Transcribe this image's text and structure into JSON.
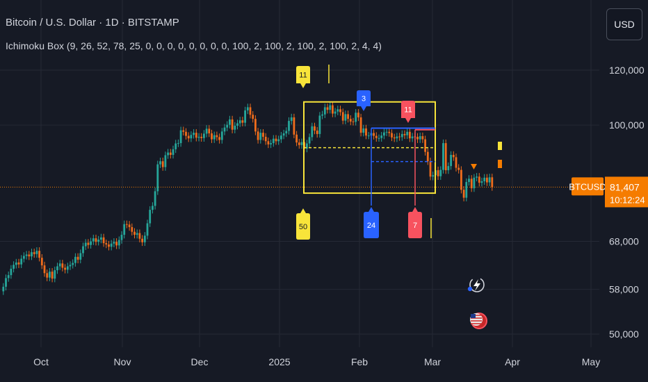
{
  "header": {
    "title": "Bitcoin / U.S. Dollar · 1D · BITSTAMP",
    "indicator": "Ichimoku Box (9, 26, 52, 78, 25, 0, 0, 0, 0, 0, 0, 0, 0, 100, 2, 100, 2, 100, 2, 100, 2, 4, 4)"
  },
  "currency_button": "USD",
  "chart_data": {
    "type": "candlestick",
    "title": "Bitcoin / U.S. Dollar · 1D · BITSTAMP",
    "y_ticks": [
      "120,000",
      "100,000",
      "68,000",
      "58,000",
      "50,000"
    ],
    "x_ticks": [
      "Oct",
      "Nov",
      "Dec",
      "2025",
      "Feb",
      "Mar",
      "Apr",
      "May"
    ],
    "grid": true,
    "last_price": {
      "symbol": "BTCUSD",
      "value": "81,407",
      "countdown": "10:12:24"
    },
    "closes": [
      58500,
      60200,
      60800,
      62100,
      62900,
      63400,
      63000,
      64200,
      64800,
      65100,
      64700,
      65600,
      65200,
      65900,
      64400,
      62800,
      61200,
      60300,
      61500,
      60100,
      61800,
      62600,
      63200,
      62300,
      61900,
      62600,
      62900,
      63300,
      64600,
      64000,
      65400,
      66900,
      67700,
      67200,
      68000,
      68700,
      67900,
      68400,
      68900,
      67600,
      67300,
      66800,
      67500,
      67900,
      67100,
      68300,
      69500,
      72000,
      71900,
      71300,
      70200,
      69500,
      69900,
      68600,
      67800,
      69300,
      72200,
      75500,
      76500,
      80300,
      87800,
      88700,
      87000,
      90500,
      91300,
      90600,
      92300,
      94100,
      94200,
      98300,
      97800,
      96500,
      95700,
      96800,
      97500,
      95900,
      96200,
      95800,
      97200,
      98800,
      97300,
      95400,
      96700,
      96100,
      95200,
      97900,
      99200,
      100100,
      101900,
      98500,
      99800,
      100600,
      101600,
      100800,
      105000,
      106100,
      103500,
      102100,
      97900,
      95200,
      97500,
      96200,
      94800,
      93800,
      94200,
      95600,
      94800,
      95400,
      96600,
      97300,
      98100,
      101400,
      102600,
      96900,
      94400,
      93600,
      94500,
      92500,
      94100,
      96100,
      99600,
      98200,
      97100,
      103200,
      103600,
      106100,
      105200,
      106800,
      103900,
      104600,
      105400,
      104400,
      101500,
      103700,
      102100,
      101200,
      101100,
      104200,
      102600,
      97500,
      98900,
      96600,
      96600,
      97400,
      96500,
      95800,
      95800,
      96600,
      97600,
      97800,
      97400,
      96000,
      95700,
      96300,
      96100,
      97100,
      96700,
      97800,
      95700,
      96300,
      96200,
      95400,
      96400,
      95400,
      91500,
      88700,
      84300,
      84700,
      86100,
      84400,
      86200,
      94200,
      86100,
      87300,
      90600,
      89900,
      86800,
      86200,
      80700,
      78600,
      82800,
      83700,
      81100,
      84000,
      84300,
      82600,
      83000,
      84000,
      82700,
      84100,
      81407
    ],
    "ichimoku_box": {
      "labels": [
        "11",
        "3",
        "11",
        "50",
        "24",
        "7"
      ],
      "box_high": 108000,
      "box_low": 79800,
      "yellow_mid": 92800,
      "blue_high": 99000,
      "blue_mid": 88600,
      "red_high": 98500
    }
  },
  "colors": {
    "background": "#161a25",
    "grid": "#252935",
    "up": "#26a69a",
    "down": "#ef6c1c",
    "yellow": "#f8e43a",
    "blue": "#2962ff",
    "red": "#f7525f",
    "price_tag": "#f57c00"
  },
  "icons": [
    "lightning-icon",
    "us-flag-icon"
  ]
}
